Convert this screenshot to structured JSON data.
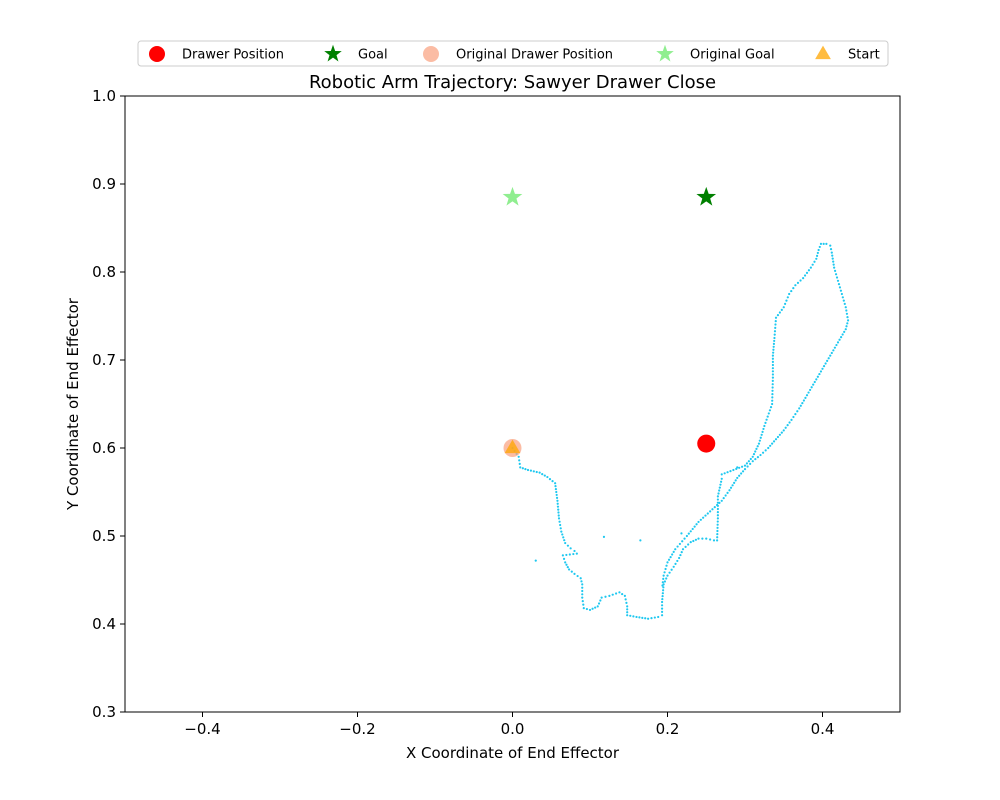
{
  "chart_data": {
    "type": "scatter",
    "title": "Robotic Arm Trajectory: Sawyer Drawer Close",
    "xlabel": "X Coordinate of End Effector",
    "ylabel": "Y Coordinate of End Effector",
    "xlim": [
      -0.5,
      0.5
    ],
    "ylim": [
      0.3,
      1.0
    ],
    "xticks": [
      -0.4,
      -0.2,
      0.0,
      0.2,
      0.4
    ],
    "yticks": [
      0.3,
      0.4,
      0.5,
      0.6,
      0.7,
      0.8,
      0.9,
      1.0
    ],
    "xtick_labels": [
      "−0.4",
      "−0.2",
      "0.0",
      "0.2",
      "0.4"
    ],
    "ytick_labels": [
      "0.3",
      "0.4",
      "0.5",
      "0.6",
      "0.7",
      "0.8",
      "0.9",
      "1.0"
    ],
    "grid": false,
    "legend_placement": "top-center, above axes",
    "legend": [
      {
        "label": "Drawer Position",
        "marker": "circle",
        "color": "#ff0000"
      },
      {
        "label": "Goal",
        "marker": "star",
        "color": "#008000"
      },
      {
        "label": "Original Drawer Position",
        "marker": "circle",
        "color": "#f9a07e"
      },
      {
        "label": "Original Goal",
        "marker": "star",
        "color": "#90ee90"
      },
      {
        "label": "Start",
        "marker": "triangle",
        "color": "#ffa500"
      }
    ],
    "markers": [
      {
        "name": "Drawer Position",
        "marker": "circle",
        "color": "#ff0000",
        "x": 0.25,
        "y": 0.605
      },
      {
        "name": "Goal",
        "marker": "star",
        "color": "#008000",
        "x": 0.25,
        "y": 0.885
      },
      {
        "name": "Original Drawer Position",
        "marker": "circle",
        "color": "#f9a07e",
        "x": 0.0,
        "y": 0.6
      },
      {
        "name": "Original Goal",
        "marker": "star",
        "color": "#90ee90",
        "x": 0.0,
        "y": 0.885
      },
      {
        "name": "Start",
        "marker": "triangle",
        "color": "#ffa500",
        "x": 0.0,
        "y": 0.6
      }
    ],
    "trajectory_color": "#1ec8f0",
    "trajectory_path": [
      [
        0.0,
        0.6
      ],
      [
        0.008,
        0.59
      ],
      [
        0.01,
        0.578
      ],
      [
        0.02,
        0.575
      ],
      [
        0.035,
        0.572
      ],
      [
        0.045,
        0.567
      ],
      [
        0.055,
        0.56
      ],
      [
        0.058,
        0.54
      ],
      [
        0.06,
        0.52
      ],
      [
        0.063,
        0.505
      ],
      [
        0.068,
        0.492
      ],
      [
        0.075,
        0.486
      ],
      [
        0.08,
        0.483
      ],
      [
        0.083,
        0.48
      ],
      [
        0.065,
        0.478
      ],
      [
        0.068,
        0.47
      ],
      [
        0.073,
        0.462
      ],
      [
        0.08,
        0.457
      ],
      [
        0.088,
        0.452
      ],
      [
        0.09,
        0.445
      ],
      [
        0.09,
        0.43
      ],
      [
        0.092,
        0.418
      ],
      [
        0.1,
        0.416
      ],
      [
        0.11,
        0.42
      ],
      [
        0.115,
        0.43
      ],
      [
        0.125,
        0.432
      ],
      [
        0.138,
        0.436
      ],
      [
        0.145,
        0.432
      ],
      [
        0.148,
        0.42
      ],
      [
        0.148,
        0.41
      ],
      [
        0.16,
        0.408
      ],
      [
        0.175,
        0.406
      ],
      [
        0.188,
        0.408
      ],
      [
        0.193,
        0.41
      ],
      [
        0.193,
        0.425
      ],
      [
        0.195,
        0.445
      ],
      [
        0.2,
        0.455
      ],
      [
        0.208,
        0.465
      ],
      [
        0.215,
        0.475
      ],
      [
        0.22,
        0.485
      ],
      [
        0.23,
        0.493
      ],
      [
        0.24,
        0.497
      ],
      [
        0.25,
        0.497
      ],
      [
        0.26,
        0.495
      ],
      [
        0.264,
        0.495
      ],
      [
        0.265,
        0.52
      ],
      [
        0.265,
        0.545
      ],
      [
        0.27,
        0.565
      ],
      [
        0.27,
        0.57
      ],
      [
        0.3,
        0.58
      ],
      [
        0.31,
        0.59
      ],
      [
        0.318,
        0.605
      ],
      [
        0.325,
        0.625
      ],
      [
        0.335,
        0.65
      ],
      [
        0.336,
        0.68
      ],
      [
        0.336,
        0.705
      ],
      [
        0.338,
        0.725
      ],
      [
        0.34,
        0.748
      ],
      [
        0.35,
        0.76
      ],
      [
        0.357,
        0.775
      ],
      [
        0.365,
        0.785
      ],
      [
        0.375,
        0.793
      ],
      [
        0.385,
        0.805
      ],
      [
        0.392,
        0.815
      ],
      [
        0.395,
        0.825
      ],
      [
        0.398,
        0.832
      ],
      [
        0.405,
        0.832
      ],
      [
        0.41,
        0.83
      ],
      [
        0.412,
        0.822
      ],
      [
        0.415,
        0.805
      ],
      [
        0.42,
        0.79
      ],
      [
        0.425,
        0.775
      ],
      [
        0.43,
        0.76
      ],
      [
        0.433,
        0.745
      ],
      [
        0.43,
        0.735
      ],
      [
        0.42,
        0.72
      ],
      [
        0.41,
        0.705
      ],
      [
        0.4,
        0.69
      ],
      [
        0.39,
        0.675
      ],
      [
        0.38,
        0.66
      ],
      [
        0.37,
        0.645
      ],
      [
        0.36,
        0.632
      ],
      [
        0.35,
        0.62
      ],
      [
        0.34,
        0.61
      ],
      [
        0.33,
        0.6
      ],
      [
        0.32,
        0.592
      ],
      [
        0.31,
        0.585
      ],
      [
        0.3,
        0.576
      ],
      [
        0.29,
        0.566
      ],
      [
        0.28,
        0.552
      ],
      [
        0.27,
        0.54
      ],
      [
        0.255,
        0.528
      ],
      [
        0.24,
        0.516
      ],
      [
        0.225,
        0.5
      ],
      [
        0.21,
        0.485
      ],
      [
        0.2,
        0.47
      ],
      [
        0.195,
        0.455
      ],
      [
        0.193,
        0.44
      ]
    ],
    "stray_points": [
      [
        0.03,
        0.472
      ],
      [
        0.118,
        0.499
      ],
      [
        0.165,
        0.495
      ],
      [
        0.218,
        0.503
      ],
      [
        0.29,
        0.578
      ]
    ]
  }
}
